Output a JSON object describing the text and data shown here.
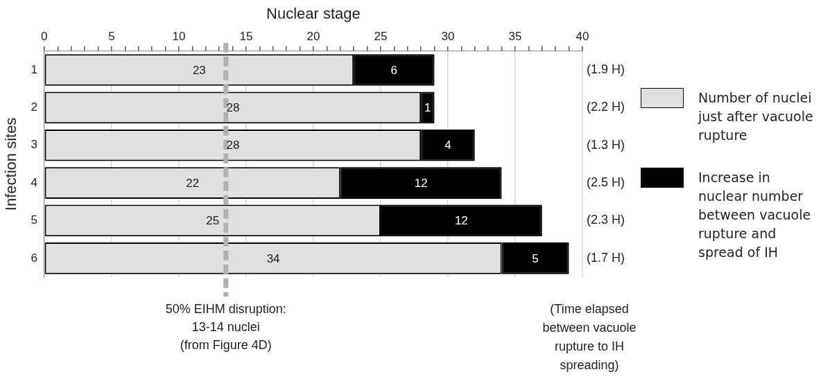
{
  "chart_data": {
    "type": "bar",
    "orientation": "horizontal",
    "stacked": true,
    "xlabel": "Nuclear stage",
    "ylabel": "Infection sites",
    "categories": [
      "1",
      "2",
      "3",
      "4",
      "5",
      "6"
    ],
    "series": [
      {
        "name": "Number of nuclei just after vacuole rupture",
        "color": "#e0e0e0",
        "values": [
          23,
          28,
          28,
          22,
          25,
          34
        ]
      },
      {
        "name": "Increase in nuclear number between vacuole rupture and spread of IH",
        "color": "#000000",
        "values": [
          6,
          1,
          4,
          12,
          12,
          5
        ]
      }
    ],
    "xlim": [
      0,
      40
    ],
    "xticks": [
      0,
      {
        "value": 1,
        "label": null
      },
      {
        "value": 2,
        "label": null
      },
      {
        "value": 3,
        "label": null
      },
      {
        "value": 4,
        "label": null
      },
      5,
      {
        "value": 6,
        "label": null
      },
      {
        "value": 7,
        "label": null
      },
      {
        "value": 8,
        "label": null
      },
      {
        "value": 9,
        "label": null
      },
      10,
      {
        "value": 11,
        "label": null
      },
      {
        "value": 12,
        "label": null
      },
      {
        "value": 13,
        "label": null
      },
      {
        "value": 14,
        "label": null
      },
      15,
      {
        "value": 16,
        "label": null
      },
      {
        "value": 17,
        "label": null
      },
      {
        "value": 18,
        "label": null
      },
      {
        "value": 19,
        "label": null
      },
      20,
      {
        "value": 21,
        "label": null
      },
      {
        "value": 22,
        "label": null
      },
      {
        "value": 23,
        "label": null
      },
      {
        "value": 24,
        "label": null
      },
      25,
      {
        "value": 26,
        "label": null
      },
      {
        "value": 27,
        "label": null
      },
      {
        "value": 28,
        "label": null
      },
      {
        "value": 29,
        "label": null
      },
      30,
      {
        "value": 31,
        "label": null
      },
      {
        "value": 32,
        "label": null
      },
      {
        "value": 33,
        "label": null
      },
      {
        "value": 34,
        "label": null
      },
      35,
      {
        "value": 36,
        "label": null
      },
      {
        "value": 37,
        "label": null
      },
      {
        "value": 38,
        "label": null
      },
      {
        "value": 39,
        "label": null
      },
      40
    ],
    "grid": "x",
    "data_labels": true,
    "legend": "right",
    "ref_lines": [
      {
        "axis": "x",
        "value": 13.5,
        "label": "50% EIHM disruption:\n13-14 nuclei\n(from Figure 4D)",
        "color": "#b0b0b0",
        "line_style": "dashed"
      }
    ],
    "annotations": [
      "(1.9 H)",
      "(2.2 H)",
      "(1.3 H)",
      "(2.5 H)",
      "(2.3 H)",
      "(1.7 H)",
      "(Time elapsed\nbetween vacuole\nrupture to IH\nspreading)"
    ]
  }
}
